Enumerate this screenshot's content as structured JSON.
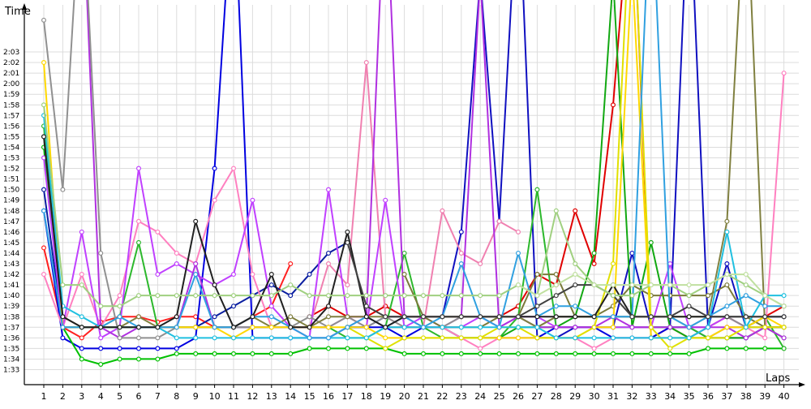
{
  "chart_data": {
    "type": "line",
    "ylabel": "Time",
    "xlabel": "Laps",
    "x": [
      1,
      2,
      3,
      4,
      5,
      6,
      7,
      8,
      9,
      10,
      11,
      12,
      13,
      14,
      15,
      16,
      17,
      18,
      19,
      20,
      21,
      22,
      23,
      24,
      25,
      26,
      27,
      28,
      29,
      30,
      31,
      32,
      33,
      34,
      35,
      36,
      37,
      38,
      39,
      40
    ],
    "y_ticks": [
      "1:33",
      "1:34",
      "1:35",
      "1:36",
      "1:37",
      "1:38",
      "1:39",
      "1:40",
      "1:41",
      "1:42",
      "1:43",
      "1:44",
      "1:45",
      "1:46",
      "1:47",
      "1:48",
      "1:49",
      "1:50",
      "1:51",
      "1:52",
      "1:53",
      "1:54",
      "1:55",
      "1:56",
      "1:57",
      "1:58",
      "1:59",
      "2:00",
      "2:01",
      "2:02",
      "2:03"
    ],
    "ylim_seconds": [
      92,
      124
    ],
    "grid": true,
    "legend": "none",
    "series": [
      {
        "color": "#ff2020",
        "values": [
          104.5,
          97,
          96,
          97.5,
          98,
          98,
          97.5,
          98,
          98,
          97,
          97,
          98,
          99,
          103,
          null,
          null,
          null,
          null,
          null,
          null,
          null,
          null,
          null,
          null,
          null,
          null,
          null,
          null,
          null,
          null,
          null,
          null,
          null,
          null,
          null,
          null,
          null,
          null,
          null,
          null
        ]
      },
      {
        "color": "#e00000",
        "values": [
          null,
          null,
          null,
          null,
          null,
          null,
          null,
          null,
          null,
          null,
          null,
          null,
          null,
          null,
          98,
          99,
          98,
          98,
          99,
          98,
          98,
          98,
          98,
          98,
          98,
          99,
          102,
          101,
          108,
          103,
          118,
          140,
          96,
          97,
          96,
          97,
          98,
          97,
          98,
          99
        ]
      },
      {
        "color": "#0000e0",
        "values": [
          108,
          96,
          95,
          95,
          95,
          95,
          95,
          95,
          96,
          112,
          140,
          96,
          96,
          96,
          96,
          96,
          97,
          97,
          97,
          96,
          97,
          97,
          96,
          96,
          96,
          96,
          96,
          97,
          97,
          97,
          96,
          96,
          96,
          97,
          97,
          96,
          96,
          96,
          97,
          97
        ]
      },
      {
        "color": "#0a1ea0",
        "values": [
          110,
          97,
          97,
          97,
          97,
          97,
          97,
          97,
          97,
          98,
          99,
          100,
          101,
          100,
          102,
          104,
          105,
          null,
          null,
          null,
          null,
          null,
          null,
          null,
          null,
          null,
          null,
          null,
          null,
          null,
          null,
          null,
          null,
          null,
          null,
          null,
          null,
          null,
          null,
          null
        ]
      },
      {
        "color": "#1010c0",
        "values": [
          null,
          null,
          null,
          null,
          null,
          null,
          null,
          null,
          null,
          null,
          null,
          null,
          null,
          null,
          null,
          null,
          97,
          97,
          98,
          98,
          98,
          98,
          106,
          130,
          107,
          140,
          96,
          96,
          97,
          97,
          97,
          104,
          97,
          97,
          140,
          97,
          103,
          97,
          98,
          98
        ]
      },
      {
        "color": "#00c000",
        "values": [
          114,
          97,
          94,
          93.5,
          94,
          94,
          94,
          94.5,
          94.5,
          94.5,
          94.5,
          94.5,
          94.5,
          94.5,
          95,
          95,
          95,
          95,
          95,
          94.5,
          94.5,
          94.5,
          94.5,
          94.5,
          94.5,
          94.5,
          94.5,
          94.5,
          94.5,
          94.5,
          94.5,
          94.5,
          94.5,
          94.5,
          94.5,
          95,
          95,
          95,
          95,
          95
        ]
      },
      {
        "color": "#12a812",
        "values": [
          null,
          null,
          null,
          null,
          null,
          null,
          null,
          null,
          null,
          null,
          null,
          null,
          null,
          null,
          null,
          null,
          null,
          null,
          97,
          97,
          97,
          97,
          96,
          96,
          96,
          97,
          97,
          97,
          98,
          104,
          130,
          97,
          105,
          97,
          96,
          96,
          96,
          96,
          97,
          96
        ]
      },
      {
        "color": "#2cb82c",
        "values": [
          116,
          97,
          97,
          97,
          98,
          105,
          97,
          97,
          97,
          97,
          97,
          97,
          97,
          97,
          97,
          97,
          96,
          96,
          97,
          104,
          97,
          96,
          96,
          96,
          96,
          98,
          110,
          97,
          97,
          97,
          97,
          97,
          97,
          97,
          97,
          96,
          97,
          97,
          98,
          95
        ]
      },
      {
        "color": "#ff80c0",
        "values": [
          102,
          97,
          102,
          97,
          100,
          107,
          106,
          104,
          103,
          109,
          112,
          102,
          97,
          97,
          96,
          96,
          97,
          98,
          97,
          97,
          97,
          97,
          96,
          95,
          96,
          96,
          96,
          96,
          96,
          95,
          96,
          96,
          96,
          96,
          96,
          96,
          97,
          97,
          96,
          121
        ]
      },
      {
        "color": "#f080b0",
        "values": [
          null,
          null,
          null,
          null,
          null,
          null,
          null,
          null,
          null,
          null,
          null,
          null,
          null,
          97,
          97,
          103,
          101,
          122,
          98,
          97,
          97,
          108,
          104,
          103,
          107,
          106,
          null,
          null,
          null,
          null,
          null,
          null,
          null,
          null,
          null,
          null,
          null,
          null,
          null,
          null
        ]
      },
      {
        "color": "#c040ff",
        "values": [
          113,
          97,
          106,
          96,
          97,
          112,
          102,
          103,
          102,
          101,
          102,
          109,
          99,
          97,
          96,
          110,
          98,
          97,
          109,
          97,
          98,
          97,
          97,
          98,
          97,
          98,
          98,
          97,
          97,
          97,
          97,
          97,
          97,
          103,
          97,
          97,
          98,
          97,
          97,
          97
        ]
      },
      {
        "color": "#b030e0",
        "values": [
          null,
          null,
          140,
          97,
          96,
          97,
          97,
          97,
          103,
          97,
          97,
          97,
          97,
          97,
          97,
          97,
          98,
          98,
          140,
          98,
          97,
          97,
          98,
          130,
          97,
          98,
          97,
          97,
          97,
          97,
          98,
          97,
          97,
          97,
          97,
          97,
          97,
          96,
          97,
          96
        ]
      },
      {
        "color": "#909090",
        "values": [
          126,
          110,
          140,
          104,
          96,
          96,
          96,
          97,
          97,
          97,
          97,
          97,
          97,
          97,
          98,
          97,
          98,
          97,
          98,
          97,
          97,
          97,
          98,
          98,
          98,
          98,
          97,
          98,
          98,
          98,
          98,
          98,
          98,
          98,
          97,
          98,
          98,
          97,
          97,
          97
        ]
      },
      {
        "color": "#808040",
        "values": [
          115,
          98,
          97,
          97,
          97,
          98,
          97,
          97,
          97,
          97,
          97,
          98,
          97,
          98,
          97,
          98,
          98,
          98,
          98,
          98,
          98,
          98,
          98,
          98,
          98,
          98,
          97,
          98,
          98,
          98,
          98,
          98,
          98,
          98,
          98,
          98,
          107,
          140,
          97,
          97
        ]
      },
      {
        "color": "#7a7a3a",
        "values": [
          null,
          null,
          null,
          null,
          null,
          null,
          null,
          null,
          null,
          null,
          null,
          null,
          null,
          null,
          null,
          null,
          null,
          null,
          null,
          102,
          98,
          97,
          97,
          97,
          98,
          98,
          102,
          102,
          98,
          98,
          99,
          101,
          100,
          100,
          100,
          100,
          101,
          98,
          97,
          97
        ]
      },
      {
        "color": "#ffd800",
        "values": [
          122,
          97,
          97,
          97,
          97,
          97,
          97,
          97,
          97,
          97,
          96,
          97,
          97,
          97,
          97,
          97,
          97,
          97,
          96,
          96,
          96,
          96,
          96,
          96,
          96,
          96,
          96,
          96,
          96,
          97,
          97,
          131,
          96,
          96,
          96,
          96,
          97,
          97,
          98,
          97
        ]
      },
      {
        "color": "#e0e000",
        "values": [
          null,
          null,
          null,
          null,
          null,
          null,
          null,
          null,
          null,
          null,
          null,
          null,
          null,
          null,
          null,
          null,
          97,
          96,
          95,
          96,
          96,
          96,
          96,
          96,
          97,
          97,
          96,
          96,
          96,
          97,
          103,
          140,
          97,
          95,
          96,
          96,
          96,
          97,
          97,
          97
        ]
      },
      {
        "color": "#20c0e0",
        "values": [
          117,
          99,
          98,
          97,
          97,
          97,
          97,
          96,
          96,
          96,
          96,
          96,
          96,
          96,
          96,
          96,
          96,
          96,
          97,
          97,
          97,
          97,
          97,
          97,
          97,
          97,
          97,
          96,
          96,
          96,
          96,
          96,
          96,
          96,
          96,
          97,
          106,
          97,
          100,
          100
        ]
      },
      {
        "color": "#30a0e0",
        "values": [
          108,
          97,
          97,
          97,
          98,
          97,
          97,
          97,
          102,
          97,
          97,
          98,
          98,
          97,
          96,
          96,
          97,
          98,
          97,
          98,
          97,
          98,
          103,
          98,
          97,
          104,
          98,
          99,
          99,
          98,
          98,
          98,
          140,
          98,
          97,
          98,
          99,
          100,
          99,
          99
        ]
      },
      {
        "color": "#202020",
        "values": [
          115,
          98,
          97,
          97,
          97,
          97,
          97,
          98,
          107,
          101,
          97,
          98,
          102,
          97,
          97,
          99,
          106,
          98,
          97,
          98,
          98,
          98,
          98,
          98,
          98,
          98,
          98,
          98,
          98,
          98,
          101,
          98,
          98,
          98,
          98,
          98,
          98,
          98,
          98,
          98
        ]
      },
      {
        "color": "#404040",
        "values": [
          null,
          null,
          null,
          null,
          null,
          null,
          null,
          null,
          null,
          null,
          null,
          null,
          null,
          null,
          null,
          null,
          105,
          99,
          98,
          98,
          98,
          98,
          98,
          98,
          98,
          98,
          99,
          100,
          101,
          101,
          100,
          98,
          98,
          98,
          99,
          98,
          98,
          98,
          98,
          98
        ]
      },
      {
        "color": "#a0d080",
        "values": [
          118,
          101,
          101,
          99,
          99,
          100,
          100,
          100,
          100,
          100,
          100,
          100,
          100,
          101,
          100,
          100,
          100,
          100,
          100,
          100,
          100,
          100,
          100,
          100,
          100,
          101,
          100,
          108,
          103,
          101,
          100,
          100,
          101,
          101,
          100,
          101,
          102,
          101,
          100,
          99
        ]
      },
      {
        "color": "#c0e0a0",
        "values": [
          null,
          null,
          null,
          null,
          null,
          null,
          null,
          null,
          null,
          null,
          null,
          null,
          null,
          null,
          null,
          null,
          null,
          null,
          null,
          null,
          null,
          null,
          null,
          null,
          null,
          101,
          100,
          101,
          102,
          101,
          101,
          101,
          101,
          101,
          101,
          101,
          102,
          102,
          100,
          99
        ]
      }
    ]
  }
}
